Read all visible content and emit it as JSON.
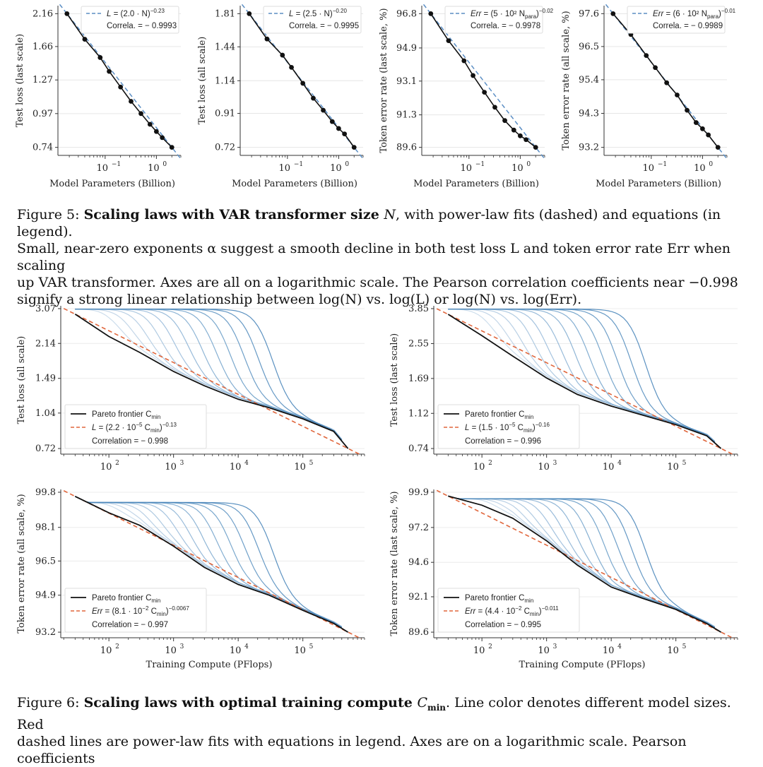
{
  "fig5": {
    "panels": [
      {
        "ylabel": "Test loss (last scale)",
        "xlabel": "Model Parameters (Billion)",
        "yticks": [
          "2.16",
          "1.66",
          "1.27",
          "0.97",
          "0.74"
        ],
        "legend_eq_lhs": "L",
        "legend_eq_rhs": " = (2.0 · N)",
        "legend_exp": "−0.23",
        "legend_corr": "Correla. = − 0.9993"
      },
      {
        "ylabel": "Test loss (all scale)",
        "xlabel": "Model Parameters (Billion)",
        "yticks": [
          "1.81",
          "1.44",
          "1.14",
          "0.91",
          "0.72"
        ],
        "legend_eq_lhs": "L",
        "legend_eq_rhs": " = (2.5 · N)",
        "legend_exp": "−0.20",
        "legend_corr": "Correla. = − 0.9995"
      },
      {
        "ylabel": "Token error rate (last scale, %)",
        "xlabel": "Model Parameters (Billion)",
        "yticks": [
          "96.8",
          "94.9",
          "93.1",
          "91.3",
          "89.6"
        ],
        "legend_eq_lhs": "Err",
        "legend_eq_rhs": " = (5 · 10² N",
        "legend_sub": "para",
        "legend_eq_close": ")",
        "legend_exp": "−0.02",
        "legend_corr": "Correla. = − 0.9978"
      },
      {
        "ylabel": "Token error rate (all scale, %)",
        "xlabel": "Model Parameters (Billion)",
        "yticks": [
          "97.6",
          "96.5",
          "95.4",
          "94.3",
          "93.2"
        ],
        "legend_eq_lhs": "Err",
        "legend_eq_rhs": " = (6 · 10² N",
        "legend_sub": "para",
        "legend_eq_close": ")",
        "legend_exp": "−0.01",
        "legend_corr": "Correla. = − 0.9989"
      }
    ],
    "xticks": [
      "10",
      "10"
    ],
    "xtick_exps": [
      "−1",
      "0"
    ]
  },
  "caption5": {
    "label": "Figure 5: ",
    "bold": "Scaling laws with VAR transformer size ",
    "bold_var": "N",
    "rest1": ", with power-law fits (dashed) and equations (in legend).",
    "line2": "Small, near-zero exponents α suggest a smooth decline in both test loss L and token error rate Err when scaling",
    "line3": "up VAR transformer. Axes are all on a logarithmic scale. The Pearson correlation coefficients near −0.998",
    "line4": "signify a strong linear relationship between log(N) vs. log(L) or log(N) vs. log(Err)."
  },
  "fig6": {
    "panels": [
      {
        "ylabel": "Test loss (all scale)",
        "yticks": [
          "3.07",
          "2.14",
          "1.49",
          "1.04",
          "0.72"
        ],
        "legend_frontier": "Pareto frontier C",
        "legend_frontier_sub": "min",
        "legend_eq_lhs": "L",
        "legend_eq_rhs": " = (2.2 · 10",
        "legend_eq_exp10": "−5",
        "legend_eq_mid": " C",
        "legend_eq_sub": "min",
        "legend_eq_close": ")",
        "legend_exp": "−0.13",
        "legend_corr": "Correlation = − 0.998",
        "xlabel": ""
      },
      {
        "ylabel": "Test loss (last scale)",
        "yticks": [
          "3.85",
          "2.55",
          "1.69",
          "1.12",
          "0.74"
        ],
        "legend_frontier": "Pareto frontier C",
        "legend_frontier_sub": "min",
        "legend_eq_lhs": "L",
        "legend_eq_rhs": " = (1.5 · 10",
        "legend_eq_exp10": "−5",
        "legend_eq_mid": " C",
        "legend_eq_sub": "min",
        "legend_eq_close": ")",
        "legend_exp": "−0.16",
        "legend_corr": "Correlation = − 0.996",
        "xlabel": ""
      },
      {
        "ylabel": "Token error rate (all scale, %)",
        "yticks": [
          "99.8",
          "98.1",
          "96.5",
          "94.9",
          "93.2"
        ],
        "legend_frontier": "Pareto frontier C",
        "legend_frontier_sub": "min",
        "legend_eq_lhs": "Err",
        "legend_eq_rhs": " = (8.1 · 10",
        "legend_eq_exp10": "−2",
        "legend_eq_mid": " C",
        "legend_eq_sub": "min",
        "legend_eq_close": ")",
        "legend_exp": "−0.0067",
        "legend_corr": "Correlation = − 0.997",
        "xlabel": "Training Compute (PFlops)"
      },
      {
        "ylabel": "Token error rate (last scale, %)",
        "yticks": [
          "99.9",
          "97.2",
          "94.6",
          "92.1",
          "89.6"
        ],
        "legend_frontier": "Pareto frontier C",
        "legend_frontier_sub": "min",
        "legend_eq_lhs": "Err",
        "legend_eq_rhs": " = (4.4 · 10",
        "legend_eq_exp10": "−2",
        "legend_eq_mid": " C",
        "legend_eq_sub": "min",
        "legend_eq_close": ")",
        "legend_exp": "−0.011",
        "legend_corr": "Correlation = − 0.995",
        "xlabel": "Training Compute (PFlops)"
      }
    ],
    "xticks": [
      "10",
      "10",
      "10",
      "10"
    ],
    "xtick_exps": [
      "2",
      "3",
      "4",
      "5"
    ]
  },
  "caption6": {
    "label": "Figure 6: ",
    "bold": "Scaling laws with optimal training compute ",
    "bold_var": "C",
    "bold_sub": "min",
    "rest1": ". Line color denotes different model sizes. Red",
    "line2": "dashed lines are power-law fits with equations in legend. Axes are on a logarithmic scale. Pearson coefficients"
  },
  "chart_data": [
    {
      "type": "line",
      "title": "",
      "xlabel": "Model Parameters (Billion)",
      "ylabel": "Test loss (last scale)",
      "log_x": true,
      "log_y": true,
      "x": [
        0.018,
        0.04,
        0.08,
        0.12,
        0.2,
        0.32,
        0.5,
        0.75,
        1.0,
        1.3,
        2.0
      ],
      "series": [
        {
          "values": [
            2.16,
            1.76,
            1.52,
            1.36,
            1.2,
            1.07,
            0.97,
            0.89,
            0.84,
            0.8,
            0.74
          ]
        }
      ],
      "fit": "L = (2.0 · N)^−0.23",
      "correlation": -0.9993
    },
    {
      "type": "line",
      "title": "",
      "xlabel": "Model Parameters (Billion)",
      "ylabel": "Test loss (all scale)",
      "log_x": true,
      "log_y": true,
      "x": [
        0.018,
        0.04,
        0.08,
        0.12,
        0.2,
        0.32,
        0.5,
        0.75,
        1.0,
        1.3,
        2.0
      ],
      "series": [
        {
          "values": [
            1.81,
            1.52,
            1.36,
            1.25,
            1.12,
            1.01,
            0.93,
            0.86,
            0.82,
            0.79,
            0.72
          ]
        }
      ],
      "fit": "L = (2.5 · N)^−0.20",
      "correlation": -0.9995
    },
    {
      "type": "line",
      "title": "",
      "xlabel": "Model Parameters (Billion)",
      "ylabel": "Token error rate (last scale, %)",
      "log_x": true,
      "log_y": true,
      "x": [
        0.018,
        0.04,
        0.08,
        0.12,
        0.2,
        0.32,
        0.5,
        0.75,
        1.0,
        1.3,
        2.0
      ],
      "series": [
        {
          "values": [
            96.8,
            95.3,
            94.2,
            93.4,
            92.5,
            91.7,
            91.0,
            90.5,
            90.2,
            90.0,
            89.6
          ]
        }
      ],
      "fit": "Err = (5 · 10^2 N_para)^−0.02",
      "correlation": -0.9978
    },
    {
      "type": "line",
      "title": "",
      "xlabel": "Model Parameters (Billion)",
      "ylabel": "Token error rate (all scale, %)",
      "log_x": true,
      "log_y": true,
      "x": [
        0.018,
        0.04,
        0.08,
        0.12,
        0.2,
        0.32,
        0.5,
        0.75,
        1.0,
        1.3,
        2.0
      ],
      "series": [
        {
          "values": [
            97.6,
            96.9,
            96.2,
            95.8,
            95.3,
            94.9,
            94.4,
            94.0,
            93.8,
            93.6,
            93.2
          ]
        }
      ],
      "fit": "Err = (6 · 10^2 N_para)^−0.01",
      "correlation": -0.9989
    },
    {
      "type": "line",
      "title": "",
      "xlabel": "",
      "ylabel": "Test loss (all scale)",
      "log_x": true,
      "log_y": true,
      "x": [
        30,
        100,
        300,
        1000,
        3000,
        10000,
        30000,
        100000,
        300000,
        500000
      ],
      "series": [
        {
          "name": "Pareto frontier C_min",
          "values": [
            2.9,
            2.3,
            1.95,
            1.6,
            1.38,
            1.2,
            1.1,
            0.98,
            0.86,
            0.72
          ]
        }
      ],
      "fit": "L = (2.2 · 10^−5 C_min)^−0.13",
      "correlation": -0.998
    },
    {
      "type": "line",
      "title": "",
      "xlabel": "",
      "ylabel": "Test loss (last scale)",
      "log_x": true,
      "log_y": true,
      "x": [
        30,
        100,
        300,
        1000,
        3000,
        10000,
        30000,
        100000,
        300000,
        500000
      ],
      "series": [
        {
          "name": "Pareto frontier C_min",
          "values": [
            3.6,
            2.8,
            2.2,
            1.7,
            1.4,
            1.22,
            1.1,
            0.98,
            0.86,
            0.74
          ]
        }
      ],
      "fit": "L = (1.5 · 10^−5 C_min)^−0.16",
      "correlation": -0.996
    },
    {
      "type": "line",
      "title": "",
      "xlabel": "Training Compute (PFlops)",
      "ylabel": "Token error rate (all scale, %)",
      "log_x": true,
      "log_y": true,
      "x": [
        30,
        100,
        300,
        1000,
        3000,
        10000,
        30000,
        100000,
        300000,
        500000
      ],
      "series": [
        {
          "name": "Pareto frontier C_min",
          "values": [
            99.6,
            98.8,
            98.2,
            97.2,
            96.2,
            95.4,
            94.9,
            94.2,
            93.6,
            93.2
          ]
        }
      ],
      "fit": "Err = (8.1 · 10^−2 C_min)^−0.0067",
      "correlation": -0.997
    },
    {
      "type": "line",
      "title": "",
      "xlabel": "Training Compute (PFlops)",
      "ylabel": "Token error rate (last scale, %)",
      "log_x": true,
      "log_y": true,
      "x": [
        30,
        100,
        300,
        1000,
        3000,
        10000,
        30000,
        100000,
        300000,
        500000
      ],
      "series": [
        {
          "name": "Pareto frontier C_min",
          "values": [
            99.6,
            98.9,
            97.9,
            96.2,
            94.4,
            92.8,
            92.0,
            91.2,
            90.2,
            89.6
          ]
        }
      ],
      "fit": "Err = (4.4 · 10^−2 C_min)^−0.011",
      "correlation": -0.995
    }
  ]
}
